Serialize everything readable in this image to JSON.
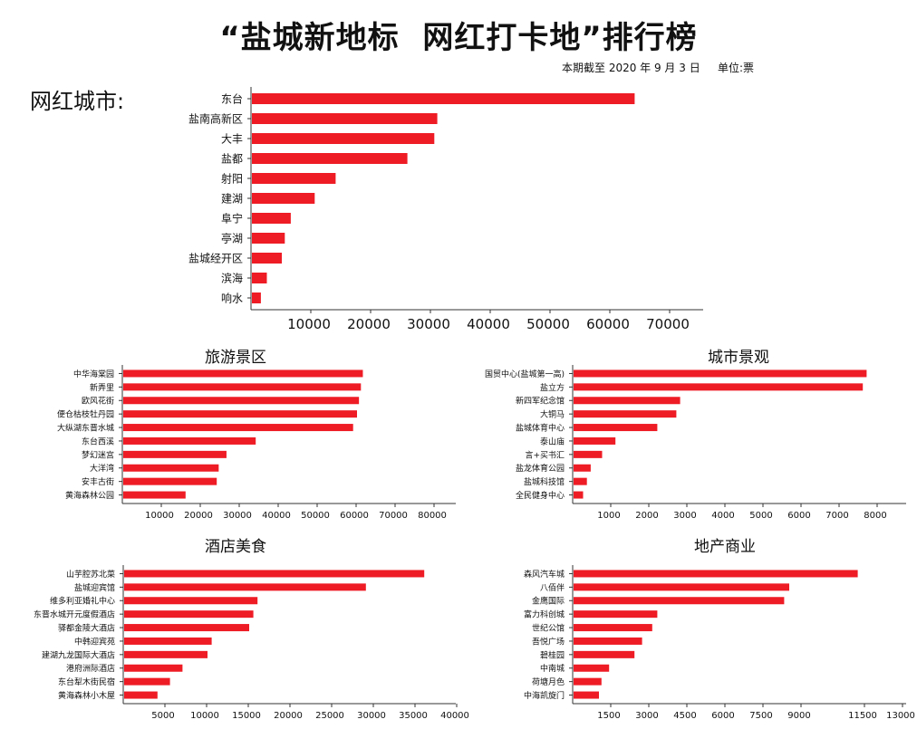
{
  "title": "“盐城新地标  网红打卡地”排行榜",
  "subtitle": "本期截至 2020 年 9 月 3 日",
  "unit": "单位:票",
  "section_label": "网红城市:",
  "bar_color": "#ee1c25",
  "chart_data": [
    {
      "type": "bar",
      "orientation": "horizontal",
      "title": "",
      "categories": [
        "东台",
        "盐南高新区",
        "大丰",
        "盐都",
        "射阳",
        "建湖",
        "阜宁",
        "亭湖",
        "盐城经开区",
        "滨海",
        "响水"
      ],
      "values": [
        64000,
        31000,
        30500,
        26000,
        14000,
        10500,
        6500,
        5500,
        5000,
        2500,
        1500
      ],
      "xticks": [
        10000,
        20000,
        30000,
        40000,
        50000,
        60000,
        70000
      ],
      "xlim": [
        0,
        75000
      ]
    },
    {
      "type": "bar",
      "orientation": "horizontal",
      "title": "旅游景区",
      "categories": [
        "中华海棠园",
        "新弄里",
        "欧风花街",
        "便仓枯枝牡丹园",
        "大纵湖东晋水城",
        "东台西溪",
        "梦幻迷宫",
        "大洋湾",
        "安丰古街",
        "黄海森林公园"
      ],
      "values": [
        61500,
        61000,
        60500,
        60000,
        59000,
        34000,
        26500,
        24500,
        24000,
        16000
      ],
      "xticks": [
        10000,
        20000,
        30000,
        40000,
        50000,
        60000,
        70000,
        80000
      ],
      "xlim": [
        0,
        85000
      ]
    },
    {
      "type": "bar",
      "orientation": "horizontal",
      "title": "城市景观",
      "categories": [
        "国贸中心(盐城第一高)",
        "盐立方",
        "新四军纪念馆",
        "大铜马",
        "盐城体育中心",
        "泰山庙",
        "言+买书汇",
        "盐龙体育公园",
        "盐城科技馆",
        "全民健身中心"
      ],
      "values": [
        7700,
        7600,
        2800,
        2700,
        2200,
        1100,
        750,
        450,
        350,
        250
      ],
      "xticks": [
        1000,
        2000,
        3000,
        4000,
        5000,
        6000,
        7000,
        8000
      ],
      "xlim": [
        0,
        9500
      ]
    },
    {
      "type": "bar",
      "orientation": "horizontal",
      "title": "酒店美食",
      "categories": [
        "山芋腔苏北菜",
        "盐城迎宾馆",
        "维多利亚婚礼中心",
        "东晋水城开元度假酒店",
        "驿都金陵大酒店",
        "中韩迎宾苑",
        "建湖九龙国际大酒店",
        "港府洲际酒店",
        "东台犁木街民宿",
        "黄海森林小木屋"
      ],
      "values": [
        36000,
        29000,
        16000,
        15500,
        15000,
        10500,
        10000,
        7000,
        5500,
        4000
      ],
      "xticks": [
        5000,
        10000,
        15000,
        20000,
        25000,
        30000,
        35000,
        40000
      ],
      "xlim": [
        0,
        42000
      ]
    },
    {
      "type": "bar",
      "orientation": "horizontal",
      "title": "地产商业",
      "categories": [
        "森风汽车城",
        "八佰伴",
        "金鹰国际",
        "富力科创城",
        "世纪公馆",
        "吾悦广场",
        "碧桂园",
        "中南城",
        "荷塘月色",
        "中海凯旋门"
      ],
      "values": [
        11200,
        8500,
        8300,
        3300,
        3100,
        2700,
        2400,
        1400,
        1100,
        1000
      ],
      "xticks": [
        1500,
        3000,
        4500,
        6000,
        7500,
        9000,
        11500,
        13000
      ],
      "xlim": [
        0,
        14000
      ]
    }
  ]
}
